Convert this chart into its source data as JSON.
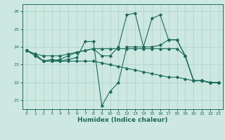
{
  "xlabel": "Humidex (Indice chaleur)",
  "bg_color": "#cde8e0",
  "grid_color": "#b0d4cc",
  "line_color": "#1a6b5a",
  "xlim": [
    -0.5,
    23.5
  ],
  "ylim": [
    20.5,
    26.4
  ],
  "yticks": [
    21,
    22,
    23,
    24,
    25,
    26
  ],
  "xticks": [
    0,
    1,
    2,
    3,
    4,
    5,
    6,
    7,
    8,
    9,
    10,
    11,
    12,
    13,
    14,
    15,
    16,
    17,
    18,
    19,
    20,
    21,
    22,
    23
  ],
  "lines": [
    {
      "x": [
        0,
        1,
        2,
        3,
        4,
        5,
        6,
        7,
        8,
        9,
        10,
        11,
        12,
        13,
        14,
        15,
        16,
        17,
        18,
        19,
        20,
        21,
        22,
        23
      ],
      "y": [
        23.8,
        23.5,
        23.2,
        23.2,
        23.2,
        23.2,
        23.2,
        23.2,
        23.2,
        23.1,
        23.0,
        22.9,
        22.8,
        22.7,
        22.6,
        22.5,
        22.4,
        22.3,
        22.3,
        22.2,
        22.1,
        22.1,
        22.0,
        22.0
      ]
    },
    {
      "x": [
        0,
        1,
        2,
        3,
        4,
        5,
        6,
        7,
        8,
        9,
        10,
        11,
        12,
        13,
        14,
        15,
        16,
        17,
        18,
        19,
        20,
        21,
        22,
        23
      ],
      "y": [
        23.8,
        23.6,
        23.2,
        23.3,
        23.2,
        23.3,
        23.4,
        24.3,
        24.3,
        20.7,
        21.5,
        22.0,
        24.0,
        24.0,
        24.0,
        24.0,
        24.1,
        24.4,
        24.4,
        23.5,
        22.1,
        22.1,
        22.0,
        22.0
      ]
    },
    {
      "x": [
        0,
        1,
        2,
        3,
        4,
        5,
        6,
        7,
        8,
        9,
        10,
        11,
        12,
        13,
        14,
        15,
        16,
        17,
        18,
        19,
        20,
        21,
        22,
        23
      ],
      "y": [
        23.8,
        23.6,
        23.2,
        23.2,
        23.3,
        23.5,
        23.7,
        23.8,
        23.9,
        23.5,
        23.5,
        24.0,
        25.8,
        25.9,
        24.0,
        25.6,
        25.8,
        24.4,
        24.4,
        23.5,
        22.1,
        22.1,
        22.0,
        22.0
      ]
    },
    {
      "x": [
        0,
        1,
        2,
        3,
        4,
        5,
        6,
        7,
        8,
        9,
        10,
        11,
        12,
        13,
        14,
        15,
        16,
        17,
        18,
        19,
        20,
        21,
        22,
        23
      ],
      "y": [
        23.8,
        23.6,
        23.5,
        23.5,
        23.5,
        23.6,
        23.7,
        23.8,
        23.9,
        23.9,
        23.9,
        23.9,
        23.9,
        23.9,
        23.9,
        23.9,
        23.9,
        23.9,
        23.9,
        23.5,
        22.1,
        22.1,
        22.0,
        22.0
      ]
    }
  ]
}
